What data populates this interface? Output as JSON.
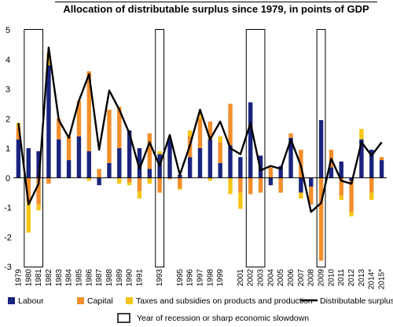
{
  "chart_data": {
    "type": "bar",
    "title": "Allocation of distributable surplus since 1979, in points of GDP",
    "stacked": true,
    "ylim": [
      -3,
      5
    ],
    "yticks": [
      -3,
      -2,
      -1,
      0,
      1,
      2,
      3,
      4,
      5
    ],
    "grid": false,
    "legend_position": "bottom",
    "categories": [
      "1979",
      "1980",
      "1981",
      "1982",
      "1983",
      "1984",
      "1985",
      "1986",
      "1987",
      "1988",
      "1989",
      "1990",
      "1991",
      "1992",
      "1993",
      "1994",
      "1995",
      "1996",
      "1997",
      "1998",
      "1999",
      "2000",
      "2001",
      "2002",
      "2003",
      "2004",
      "2005",
      "2006",
      "2007",
      "2008",
      "2009",
      "2010",
      "2011",
      "2012",
      "2013",
      "2014*",
      "2015*"
    ],
    "x_tick_labels_shown": [
      "1979",
      "1980",
      "1981",
      "1982",
      "1983",
      "1984",
      "1985",
      "1986",
      "1987",
      "1988",
      "1989",
      "1990",
      "1991",
      "1993",
      "1995",
      "1996",
      "1997",
      "1998",
      "1999",
      "2001",
      "2002",
      "2003",
      "2004",
      "2005",
      "2006",
      "2007",
      "2008",
      "2009",
      "2010",
      "2011",
      "2012",
      "2013",
      "2014*",
      "2015*"
    ],
    "series": [
      {
        "name": "Labour",
        "color": "#1a237e",
        "values": [
          1.3,
          1.0,
          0.9,
          3.8,
          1.3,
          0.6,
          1.4,
          0.9,
          -0.25,
          0.5,
          1.0,
          1.6,
          1.0,
          0.3,
          0.8,
          1.3,
          0.1,
          0.7,
          1.0,
          1.3,
          0.5,
          1.1,
          0.7,
          2.55,
          0.75,
          -0.25,
          0.4,
          1.35,
          -0.5,
          -0.3,
          1.95,
          0.35,
          0.55,
          -0.1,
          1.3,
          0.95,
          0.6
        ]
      },
      {
        "name": "Capital",
        "color": "#f28e2b",
        "values": [
          0.4,
          -0.8,
          -0.9,
          -0.2,
          0.7,
          0.8,
          1.2,
          2.7,
          0.3,
          1.8,
          1.4,
          -0.15,
          -0.45,
          1.2,
          -0.5,
          -0.05,
          -0.35,
          0.7,
          1.0,
          0.6,
          0.7,
          1.4,
          -0.5,
          -0.55,
          -0.5,
          0.35,
          -0.5,
          0.15,
          0.95,
          -0.6,
          -2.8,
          0.6,
          -0.6,
          -1.05,
          0.0,
          -0.5,
          0.1
        ]
      },
      {
        "name": "Taxes and subsidies on products and production",
        "color": "#f5c518",
        "values": [
          0.15,
          -1.05,
          -0.2,
          0.4,
          0.0,
          0.0,
          0.0,
          -0.1,
          0.0,
          0.0,
          -0.2,
          -0.1,
          -0.25,
          -0.2,
          0.1,
          0.0,
          -0.05,
          0.2,
          0.2,
          -0.1,
          0.2,
          -0.55,
          -0.55,
          0.0,
          0.0,
          0.0,
          0.0,
          0.0,
          -0.2,
          0.0,
          0.0,
          0.0,
          -0.15,
          -0.15,
          0.35,
          -0.25,
          0.0
        ]
      },
      {
        "name": "Distributable surplus",
        "color": "#000000",
        "type": "line",
        "values": [
          1.85,
          -0.9,
          -0.2,
          4.4,
          1.95,
          1.35,
          2.6,
          3.5,
          0.95,
          2.95,
          2.3,
          1.5,
          0.3,
          1.2,
          0.4,
          1.45,
          0.1,
          1.1,
          2.3,
          1.3,
          1.9,
          1.0,
          0.8,
          1.85,
          0.25,
          0.4,
          0.3,
          1.3,
          0.4,
          -1.15,
          -0.85,
          0.65,
          -0.1,
          -0.2,
          1.2,
          0.75,
          1.2
        ]
      }
    ],
    "recession_labels": [
      "1980",
      "1981",
      "1993",
      "2002",
      "2003",
      "2009"
    ],
    "recession_legend": "Year of recession or sharp economic slowdown"
  }
}
